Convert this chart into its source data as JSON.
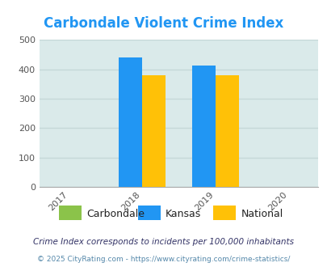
{
  "title": "Carbondale Violent Crime Index",
  "title_color": "#2196f3",
  "years": [
    2017,
    2018,
    2019,
    2020
  ],
  "bar_width": 0.32,
  "kansas": {
    "2018": 440,
    "2019": 412
  },
  "national": {
    "2018": 381,
    "2019": 381
  },
  "carbondale_color": "#8bc34a",
  "kansas_color": "#2196f3",
  "national_color": "#ffc107",
  "ylim": [
    0,
    500
  ],
  "yticks": [
    0,
    100,
    200,
    300,
    400,
    500
  ],
  "xlim": [
    2016.6,
    2020.4
  ],
  "background_color": "#daeaea",
  "grid_color": "#c5d8d8",
  "legend_labels": [
    "Carbondale",
    "Kansas",
    "National"
  ],
  "footnote1": "Crime Index corresponds to incidents per 100,000 inhabitants",
  "footnote2": "© 2025 CityRating.com - https://www.cityrating.com/crime-statistics/",
  "footnote1_color": "#333366",
  "footnote2_color": "#5588aa"
}
